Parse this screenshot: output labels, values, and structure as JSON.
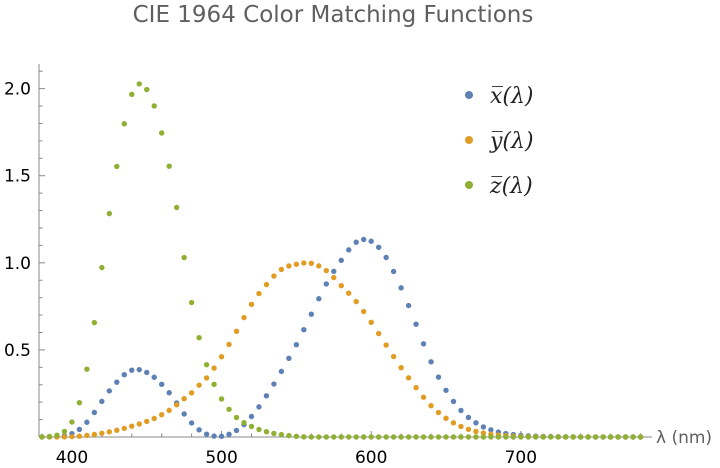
{
  "chart_data": {
    "type": "scatter",
    "title": "CIE 1964 Color Matching Functions",
    "xlabel": "λ (nm)",
    "ylabel": "",
    "xlim": [
      378,
      785
    ],
    "ylim": [
      0,
      2.13
    ],
    "xticks": [
      400,
      500,
      600,
      700
    ],
    "yticks": [
      0.5,
      1.0,
      1.5,
      2.0
    ],
    "xtick_labels": [
      "400",
      "500",
      "600",
      "700"
    ],
    "ytick_labels": [
      "0.5",
      "1.0",
      "1.5",
      "2.0"
    ],
    "legend_position": "top-right",
    "grid": false,
    "x": [
      380,
      385,
      390,
      395,
      400,
      405,
      410,
      415,
      420,
      425,
      430,
      435,
      440,
      445,
      450,
      455,
      460,
      465,
      470,
      475,
      480,
      485,
      490,
      495,
      500,
      505,
      510,
      515,
      520,
      525,
      530,
      535,
      540,
      545,
      550,
      555,
      560,
      565,
      570,
      575,
      580,
      585,
      590,
      595,
      600,
      605,
      610,
      615,
      620,
      625,
      630,
      635,
      640,
      645,
      650,
      655,
      660,
      665,
      670,
      675,
      680,
      685,
      690,
      695,
      700,
      705,
      710,
      715,
      720,
      725,
      730,
      735,
      740,
      745,
      750,
      755,
      760,
      765,
      770,
      775,
      780
    ],
    "series": [
      {
        "name": "x̅(λ)",
        "color": "#5e81b5",
        "values": [
          0.0002,
          0.0007,
          0.0024,
          0.0072,
          0.0191,
          0.0434,
          0.0847,
          0.1406,
          0.2045,
          0.2647,
          0.3147,
          0.3577,
          0.3837,
          0.3867,
          0.3707,
          0.343,
          0.3023,
          0.2541,
          0.1956,
          0.1323,
          0.0805,
          0.0411,
          0.0162,
          0.0051,
          0.0038,
          0.0154,
          0.0375,
          0.0714,
          0.1177,
          0.173,
          0.2365,
          0.3042,
          0.3768,
          0.4516,
          0.5298,
          0.6161,
          0.7052,
          0.7938,
          0.8787,
          0.9512,
          1.0142,
          1.0743,
          1.1185,
          1.1343,
          1.124,
          1.0891,
          1.0305,
          0.9507,
          0.8563,
          0.7549,
          0.6475,
          0.5351,
          0.4316,
          0.3437,
          0.2683,
          0.2043,
          0.1526,
          0.1122,
          0.0813,
          0.0579,
          0.0409,
          0.0286,
          0.0199,
          0.0138,
          0.0096,
          0.0066,
          0.0046,
          0.0031,
          0.0022,
          0.0015,
          0.001,
          0.0007,
          0.0005,
          0.0004,
          0.0003,
          0.0002,
          0.0001,
          0.0001,
          0.0001,
          0.0,
          0.0
        ]
      },
      {
        "name": "y̅(λ)",
        "color": "#e19c24",
        "values": [
          0.0,
          0.0001,
          0.0003,
          0.0008,
          0.002,
          0.0045,
          0.0088,
          0.0145,
          0.0214,
          0.0295,
          0.0387,
          0.0496,
          0.0621,
          0.0747,
          0.0895,
          0.1063,
          0.1282,
          0.1528,
          0.1852,
          0.2199,
          0.2536,
          0.2977,
          0.3391,
          0.3954,
          0.4608,
          0.5314,
          0.6067,
          0.6857,
          0.7618,
          0.8233,
          0.8752,
          0.9238,
          0.962,
          0.9822,
          0.9918,
          0.9991,
          0.9973,
          0.9824,
          0.9556,
          0.9152,
          0.8689,
          0.8256,
          0.7774,
          0.7204,
          0.6583,
          0.5939,
          0.528,
          0.4618,
          0.3981,
          0.3396,
          0.2835,
          0.2283,
          0.1798,
          0.1402,
          0.1076,
          0.0812,
          0.0603,
          0.0441,
          0.0318,
          0.0226,
          0.0159,
          0.0111,
          0.0077,
          0.0054,
          0.0037,
          0.0026,
          0.0018,
          0.0012,
          0.0008,
          0.0006,
          0.0004,
          0.0003,
          0.0002,
          0.0001,
          0.0001,
          0.0001,
          0.0,
          0.0,
          0.0,
          0.0,
          0.0
        ]
      },
      {
        "name": "z̅(λ)",
        "color": "#8fb032",
        "values": [
          0.0006,
          0.0032,
          0.0105,
          0.0321,
          0.086,
          0.1971,
          0.3894,
          0.6568,
          0.9725,
          1.2825,
          1.5535,
          1.7985,
          1.9673,
          2.0273,
          1.9948,
          1.9007,
          1.7454,
          1.5549,
          1.3176,
          1.0302,
          0.7721,
          0.5701,
          0.4153,
          0.3024,
          0.2185,
          0.1592,
          0.112,
          0.0822,
          0.0607,
          0.0431,
          0.0305,
          0.0206,
          0.0137,
          0.0079,
          0.004,
          0.0011,
          0.0,
          0.0,
          0.0,
          0.0,
          0.0,
          0.0,
          0.0,
          0.0,
          0.0,
          0.0,
          0.0,
          0.0,
          0.0,
          0.0,
          0.0,
          0.0,
          0.0,
          0.0,
          0.0,
          0.0,
          0.0,
          0.0,
          0.0,
          0.0,
          0.0,
          0.0,
          0.0,
          0.0,
          0.0,
          0.0,
          0.0,
          0.0,
          0.0,
          0.0,
          0.0,
          0.0,
          0.0,
          0.0,
          0.0,
          0.0,
          0.0,
          0.0,
          0.0,
          0.0,
          0.0
        ]
      }
    ]
  }
}
